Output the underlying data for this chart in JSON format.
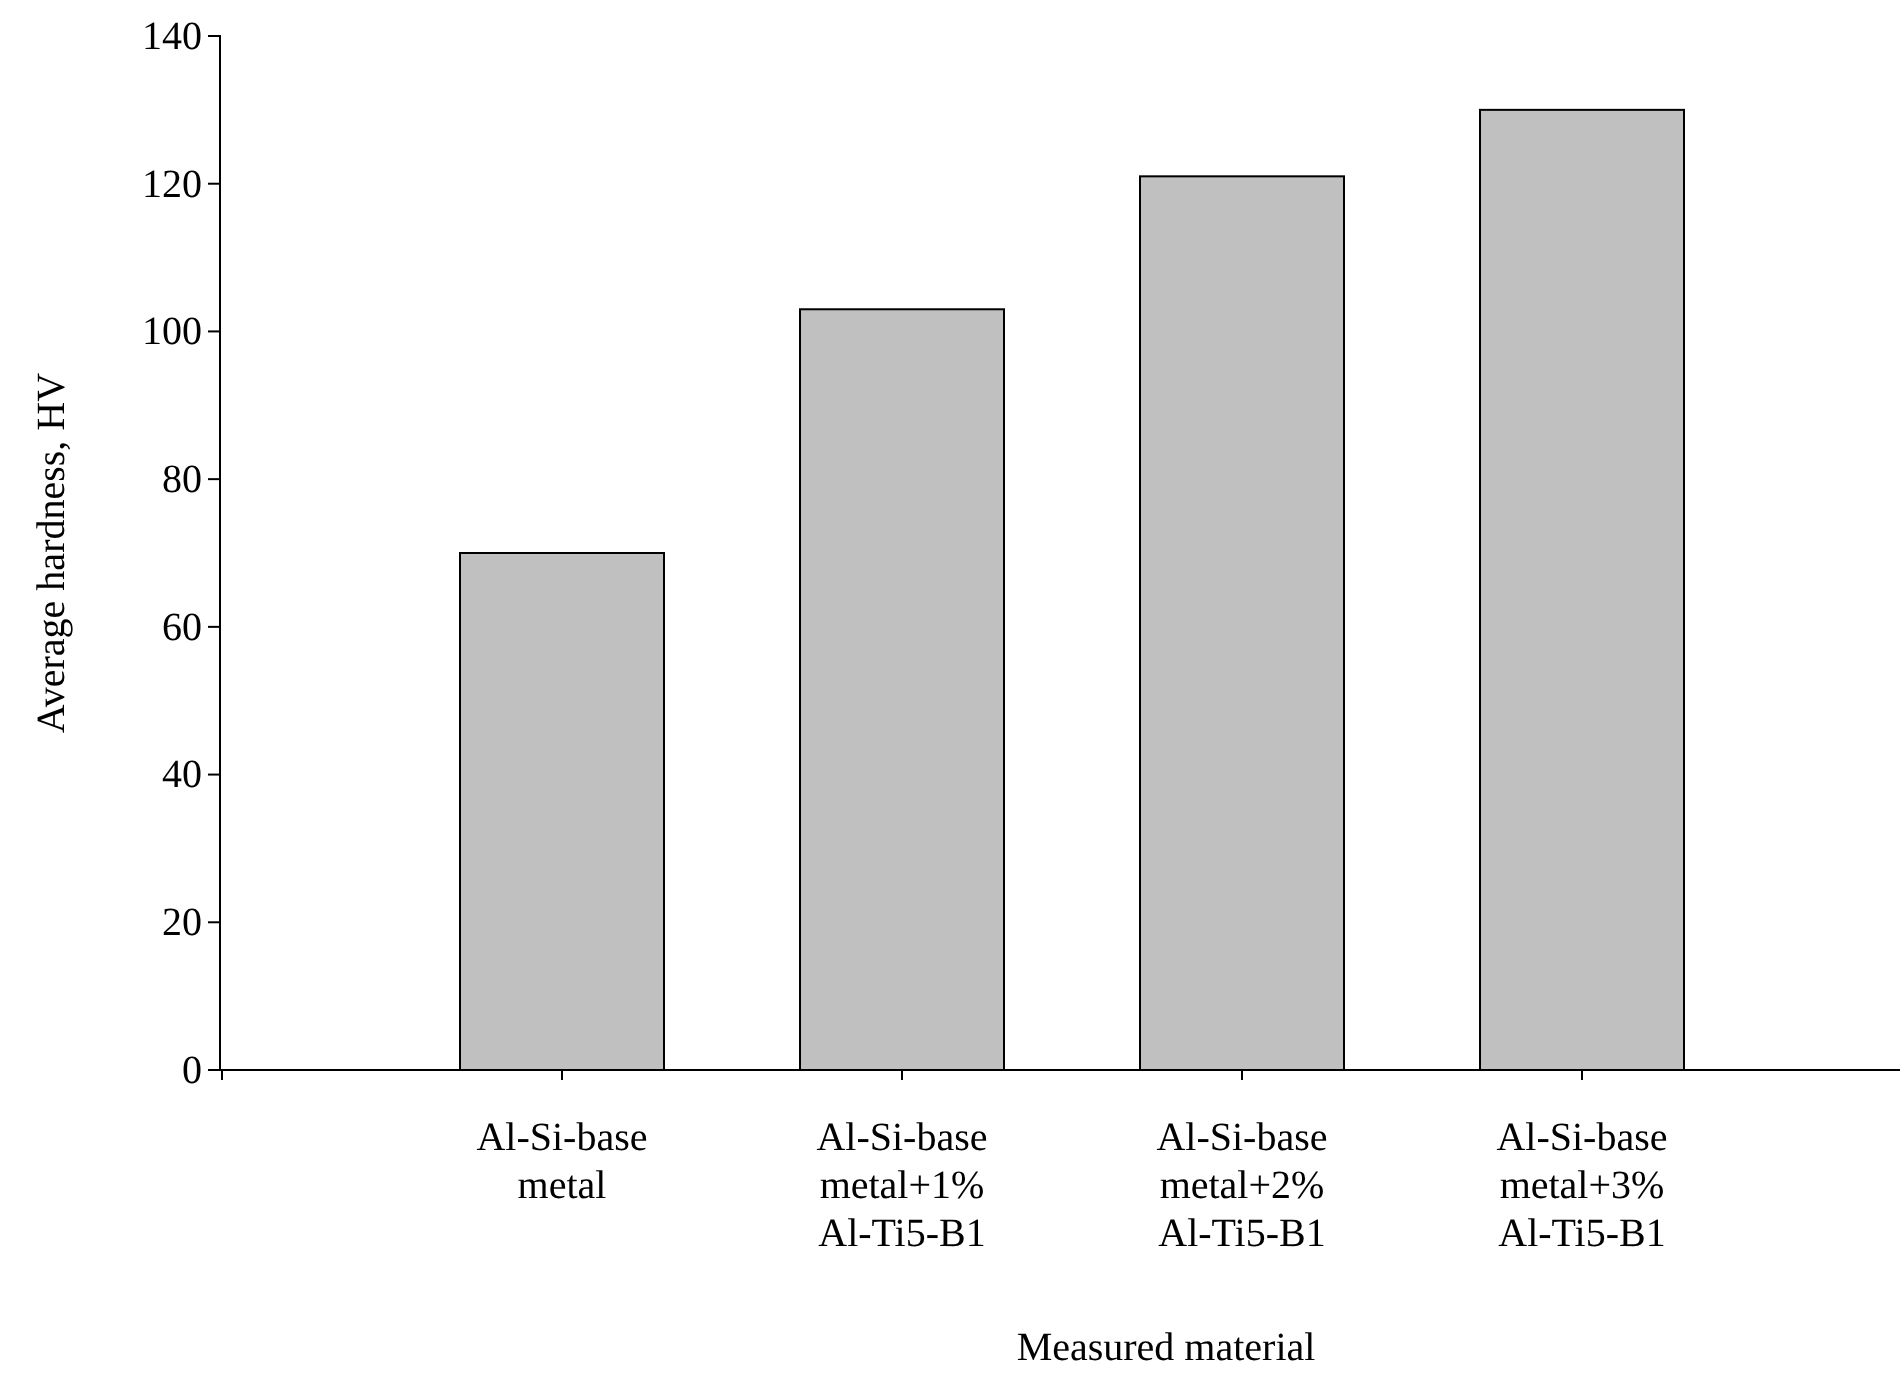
{
  "chart_data": {
    "type": "bar",
    "xlabel": "Measured material",
    "ylabel": "Average hardness, HV",
    "categories": [
      "Al-Si-base metal",
      "Al-Si-base metal+1% Al-Ti5-B1",
      "Al-Si-base metal+2% Al-Ti5-B1",
      "Al-Si-base metal+3% Al-Ti5-B1"
    ],
    "values": [
      70,
      103,
      121,
      130
    ],
    "color": "#c0c0c0",
    "ylim": [
      0,
      140
    ],
    "yticks": [
      0,
      20,
      40,
      60,
      80,
      100,
      120,
      140
    ],
    "grid": false
  }
}
